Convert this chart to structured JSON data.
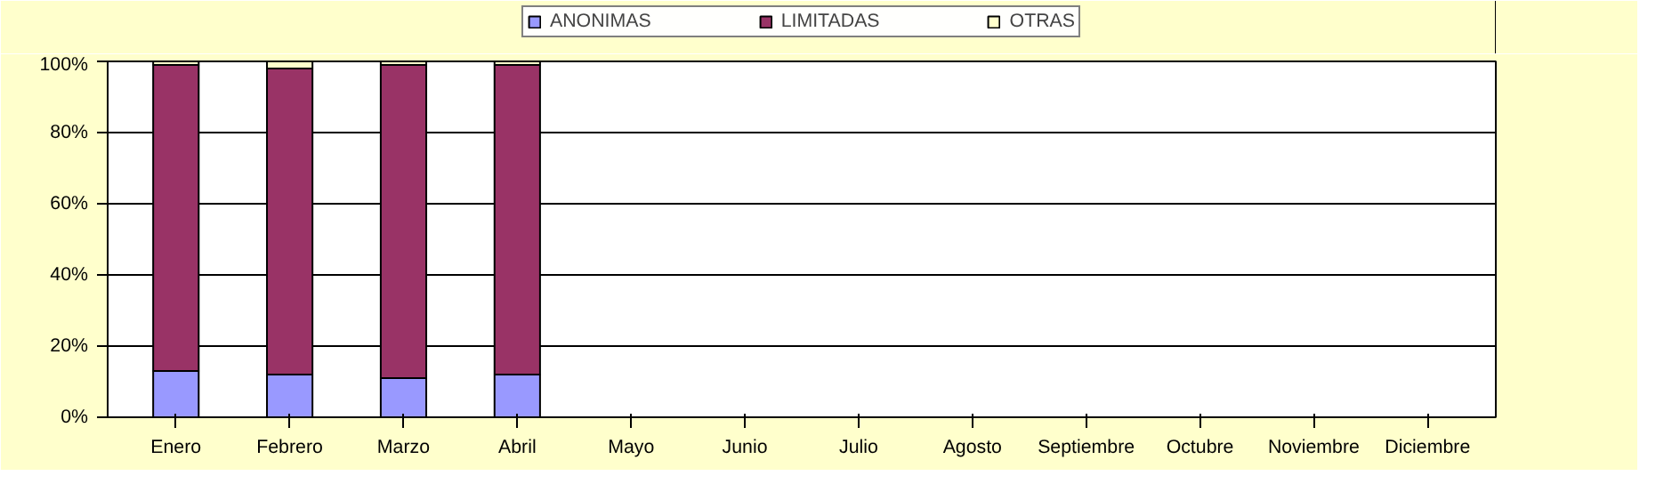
{
  "chart_data": {
    "type": "bar",
    "stacked": true,
    "categories": [
      "Enero",
      "Febrero",
      "Marzo",
      "Abril",
      "Mayo",
      "Junio",
      "Julio",
      "Agosto",
      "Septiembre",
      "Octubre",
      "Noviembre",
      "Diciembre"
    ],
    "series": [
      {
        "name": "ANONIMAS",
        "color": "#9999ff",
        "values": [
          13,
          12,
          11,
          12,
          0,
          0,
          0,
          0,
          0,
          0,
          0,
          0
        ]
      },
      {
        "name": "LIMITADAS",
        "color": "#993366",
        "values": [
          86,
          86,
          88,
          87,
          0,
          0,
          0,
          0,
          0,
          0,
          0,
          0
        ]
      },
      {
        "name": "OTRAS",
        "color": "#ffffcc",
        "values": [
          1,
          2,
          1,
          1,
          0,
          0,
          0,
          0,
          0,
          0,
          0,
          0
        ]
      }
    ],
    "ylim": [
      0,
      100
    ],
    "yticks": [
      {
        "value": 0,
        "label": "0%"
      },
      {
        "value": 20,
        "label": "20%"
      },
      {
        "value": 40,
        "label": "40%"
      },
      {
        "value": 60,
        "label": "60%"
      },
      {
        "value": 80,
        "label": "80%"
      },
      {
        "value": 100,
        "label": "100%"
      }
    ],
    "grid": "y",
    "legend": "top"
  }
}
